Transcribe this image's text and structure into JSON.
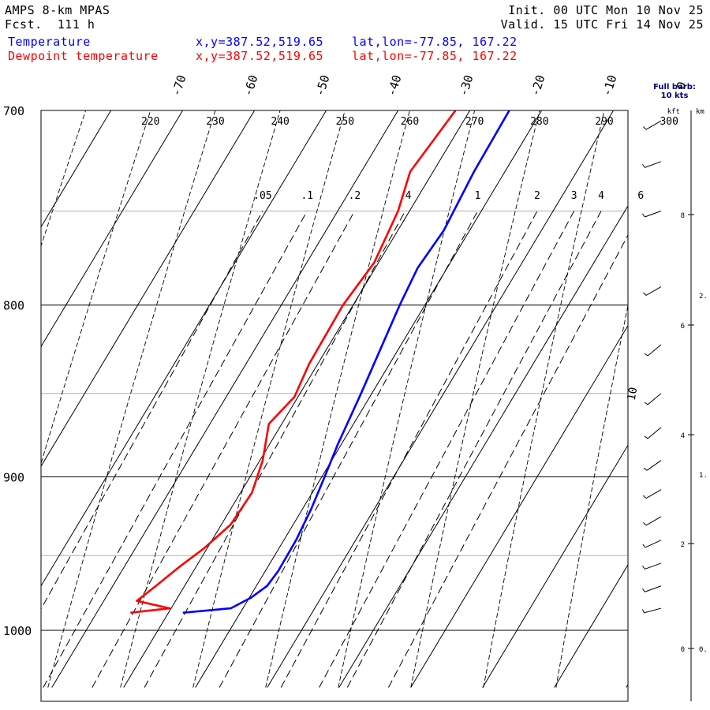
{
  "header": {
    "model": "AMPS 8-km MPAS",
    "forecast": "Fcst.  111 h",
    "init": "Init. 00 UTC Mon 10 Nov 25",
    "valid": "Valid. 15 UTC Fri 14 Nov 25",
    "series": [
      {
        "name": "Temperature",
        "xy": "x,y=387.52,519.65",
        "latlon": "lat,lon=-77.85, 167.22",
        "color": "#0000ff"
      },
      {
        "name": "Dewpoint temperature",
        "xy": "x,y=387.52,519.65",
        "latlon": "lat,lon=-77.85, 167.22",
        "color": "#ff0000"
      }
    ]
  },
  "wind_panel": {
    "title_line1": "Full barb:",
    "title_line2": "10 kts",
    "kft_label": "kft",
    "km_label": "km",
    "kft_ticks": [
      "8",
      "6",
      "4",
      "2",
      "0"
    ],
    "km_ticks": [
      "2.",
      "1.",
      "0."
    ],
    "speed_label": "10"
  },
  "chart_data": {
    "type": "line",
    "subtype": "skew-T log-P",
    "y_axis": {
      "label": "",
      "scale": "log-pressure",
      "range_hPa": [
        1040,
        700
      ],
      "ticks": [
        700,
        800,
        900,
        1000
      ]
    },
    "temperature_ticks_C": [
      -70,
      -60,
      -50,
      -40,
      -30,
      -20,
      -10,
      0
    ],
    "dry_adiabat_labels_K": [
      220,
      230,
      240,
      250,
      260,
      270,
      280,
      290,
      300
    ],
    "mixing_ratio_labels": [
      ".05",
      ".1",
      ".2",
      ".4",
      "1",
      "2",
      "3",
      "4",
      "6"
    ],
    "mixing_ratio_values": [
      0.05,
      0.1,
      0.2,
      0.4,
      1,
      2,
      3,
      4,
      6
    ],
    "series": [
      {
        "name": "Temperature",
        "color": "#0000ff",
        "points": [
          {
            "p": 700,
            "t": -24.5
          },
          {
            "p": 730,
            "t": -24.3
          },
          {
            "p": 760,
            "t": -23.6
          },
          {
            "p": 780,
            "t": -24.1
          },
          {
            "p": 800,
            "t": -23.5
          },
          {
            "p": 850,
            "t": -21.5
          },
          {
            "p": 880,
            "t": -20.5
          },
          {
            "p": 900,
            "t": -19.6
          },
          {
            "p": 920,
            "t": -18.8
          },
          {
            "p": 940,
            "t": -18.3
          },
          {
            "p": 960,
            "t": -18.2
          },
          {
            "p": 970,
            "t": -18.5
          },
          {
            "p": 978,
            "t": -19.8
          },
          {
            "p": 985,
            "t": -21.7
          },
          {
            "p": 988,
            "t": -28.0
          }
        ]
      },
      {
        "name": "Dewpoint temperature",
        "color": "#ff0000",
        "points": [
          {
            "p": 700,
            "t": -32.0
          },
          {
            "p": 730,
            "t": -33.2
          },
          {
            "p": 750,
            "t": -31.6
          },
          {
            "p": 777,
            "t": -30.6
          },
          {
            "p": 800,
            "t": -31.4
          },
          {
            "p": 833,
            "t": -31.2
          },
          {
            "p": 852,
            "t": -30.5
          },
          {
            "p": 868,
            "t": -31.8
          },
          {
            "p": 890,
            "t": -29.6
          },
          {
            "p": 910,
            "t": -28.4
          },
          {
            "p": 930,
            "t": -28.7
          },
          {
            "p": 945,
            "t": -30.4
          },
          {
            "p": 958,
            "t": -32.4
          },
          {
            "p": 970,
            "t": -34.0
          },
          {
            "p": 980,
            "t": -35.4
          },
          {
            "p": 985,
            "t": -30.2
          },
          {
            "p": 988,
            "t": -35.3
          }
        ]
      }
    ],
    "wind_barbs": [
      {
        "p": 705,
        "dir_deg": 240,
        "spd_kt": 5
      },
      {
        "p": 725,
        "dir_deg": 250,
        "spd_kt": 6
      },
      {
        "p": 750,
        "dir_deg": 250,
        "spd_kt": 6
      },
      {
        "p": 790,
        "dir_deg": 240,
        "spd_kt": 7
      },
      {
        "p": 822,
        "dir_deg": 230,
        "spd_kt": 8
      },
      {
        "p": 850,
        "dir_deg": 230,
        "spd_kt": 9
      },
      {
        "p": 870,
        "dir_deg": 230,
        "spd_kt": 9
      },
      {
        "p": 890,
        "dir_deg": 235,
        "spd_kt": 9
      },
      {
        "p": 908,
        "dir_deg": 240,
        "spd_kt": 8
      },
      {
        "p": 925,
        "dir_deg": 240,
        "spd_kt": 7
      },
      {
        "p": 940,
        "dir_deg": 245,
        "spd_kt": 7
      },
      {
        "p": 955,
        "dir_deg": 250,
        "spd_kt": 6
      },
      {
        "p": 970,
        "dir_deg": 250,
        "spd_kt": 5
      },
      {
        "p": 985,
        "dir_deg": 255,
        "spd_kt": 5
      }
    ]
  }
}
